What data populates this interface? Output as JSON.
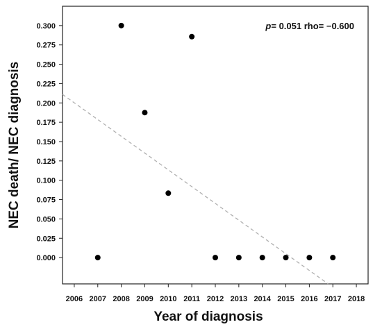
{
  "chart_data": {
    "type": "scatter",
    "title": "",
    "xlabel": "Year of diagnosis",
    "ylabel": "NEC death/ NEC diagnosis",
    "xlim": [
      2005.5,
      2018.5
    ],
    "ylim": [
      -0.034,
      0.325
    ],
    "xticks": [
      "2006",
      "2007",
      "2008",
      "2009",
      "2010",
      "2011",
      "2012",
      "2013",
      "2014",
      "2015",
      "2016",
      "2017",
      "2018"
    ],
    "yticks": [
      "0.000",
      "0.025",
      "0.050",
      "0.075",
      "0.100",
      "0.125",
      "0.150",
      "0.175",
      "0.200",
      "0.225",
      "0.250",
      "0.275",
      "0.300"
    ],
    "grid": false,
    "series": [
      {
        "x": [
          2007,
          2008,
          2009,
          2010,
          2011,
          2012,
          2013,
          2014,
          2015,
          2016,
          2017
        ],
        "y": [
          0.0,
          0.3,
          0.1875,
          0.0833,
          0.2857,
          0.0,
          0.0,
          0.0,
          0.0,
          0.0,
          0.0
        ],
        "color": "#000000"
      }
    ],
    "trendline": {
      "x": [
        2005.5,
        2016.8
      ],
      "y": [
        0.211,
        -0.034
      ],
      "style": "dashed",
      "color": "#b0b0b0"
    },
    "annotation": {
      "p_symbol": "p",
      "p_text": "= 0.051  rho= −0.600"
    }
  }
}
